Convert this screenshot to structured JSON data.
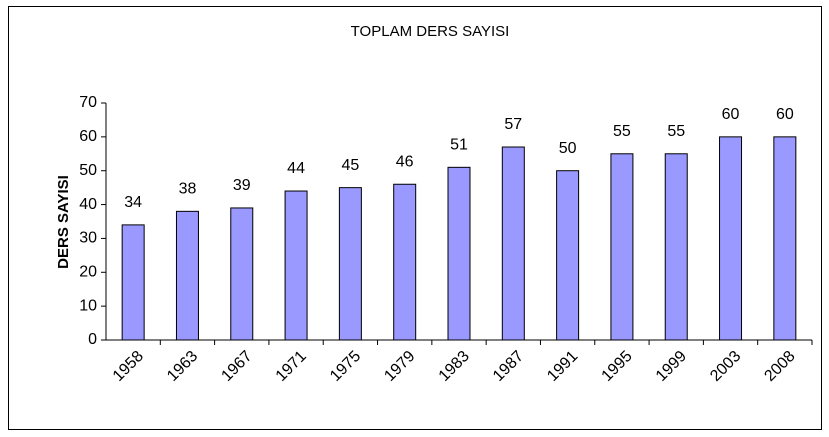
{
  "chart_data": {
    "type": "bar",
    "title": "TOPLAM DERS SAYISI",
    "y_label": "DERS SAYISI",
    "categories": [
      "1958",
      "1963",
      "1967",
      "1971",
      "1975",
      "1979",
      "1983",
      "1987",
      "1991",
      "1995",
      "1999",
      "2003",
      "2008"
    ],
    "values": [
      34,
      38,
      39,
      44,
      45,
      46,
      51,
      57,
      50,
      55,
      55,
      60,
      60
    ],
    "color": "#9999ff",
    "ylim": [
      0,
      70
    ],
    "yticks": [
      0,
      10,
      20,
      30,
      40,
      50,
      60,
      70
    ],
    "grid": false
  }
}
